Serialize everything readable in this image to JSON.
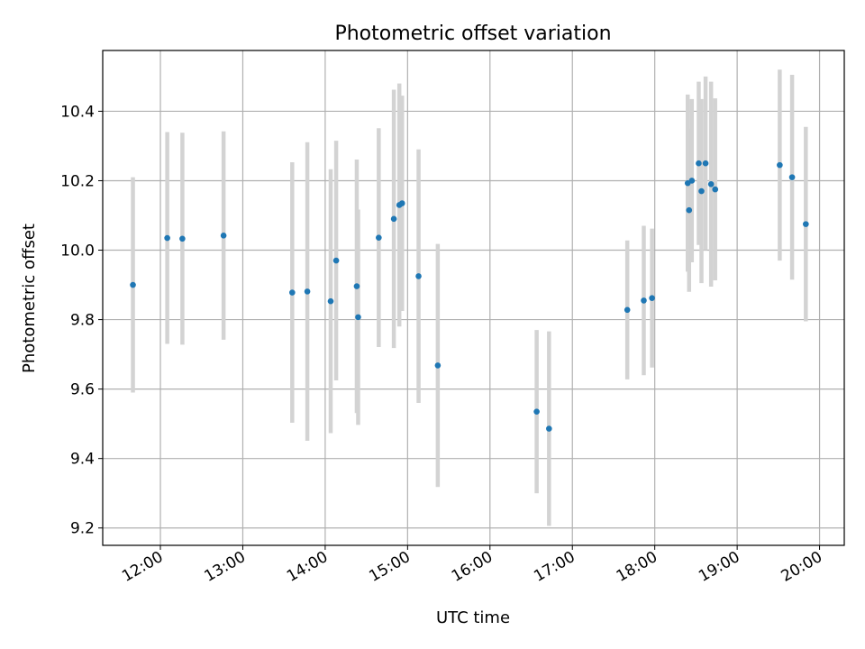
{
  "chart_data": {
    "type": "scatter",
    "title": "Photometric offset variation",
    "xlabel": "UTC time",
    "ylabel": "Photometric offset",
    "x_ticks": [
      "12:00",
      "13:00",
      "14:00",
      "15:00",
      "16:00",
      "17:00",
      "18:00",
      "19:00",
      "20:00"
    ],
    "y_ticks": [
      "9.2",
      "9.4",
      "9.6",
      "9.8",
      "10.0",
      "10.2",
      "10.4"
    ],
    "xlim": [
      "11:18",
      "20:18"
    ],
    "ylim": [
      9.15,
      10.575
    ],
    "grid": true,
    "colors": {
      "points": "#1f77b4",
      "errorbars": "#d3d3d3",
      "grid": "#b0b0b0"
    },
    "series": [
      {
        "points": [
          {
            "x": "11:40",
            "y": 9.9,
            "err": 0.31
          },
          {
            "x": "12:05",
            "y": 10.035,
            "err": 0.305
          },
          {
            "x": "12:16",
            "y": 10.033,
            "err": 0.305
          },
          {
            "x": "12:46",
            "y": 10.042,
            "err": 0.3
          },
          {
            "x": "13:36",
            "y": 9.878,
            "err": 0.375
          },
          {
            "x": "13:47",
            "y": 9.881,
            "err": 0.43
          },
          {
            "x": "14:04",
            "y": 9.853,
            "err": 0.38
          },
          {
            "x": "14:08",
            "y": 9.97,
            "err": 0.345
          },
          {
            "x": "14:23",
            "y": 9.896,
            "err": 0.365
          },
          {
            "x": "14:24",
            "y": 9.807,
            "err": 0.31
          },
          {
            "x": "14:39",
            "y": 10.036,
            "err": 0.315
          },
          {
            "x": "14:50",
            "y": 10.09,
            "err": 0.372
          },
          {
            "x": "14:54",
            "y": 10.13,
            "err": 0.35
          },
          {
            "x": "14:56",
            "y": 10.135,
            "err": 0.31
          },
          {
            "x": "15:08",
            "y": 9.925,
            "err": 0.365
          },
          {
            "x": "15:22",
            "y": 9.668,
            "err": 0.35
          },
          {
            "x": "16:34",
            "y": 9.535,
            "err": 0.235
          },
          {
            "x": "16:43",
            "y": 9.486,
            "err": 0.28
          },
          {
            "x": "17:40",
            "y": 9.828,
            "err": 0.2
          },
          {
            "x": "17:52",
            "y": 9.855,
            "err": 0.215
          },
          {
            "x": "17:58",
            "y": 9.862,
            "err": 0.2
          },
          {
            "x": "18:24",
            "y": 10.193,
            "err": 0.255
          },
          {
            "x": "18:25",
            "y": 10.115,
            "err": 0.235
          },
          {
            "x": "18:27",
            "y": 10.2,
            "err": 0.235
          },
          {
            "x": "18:32",
            "y": 10.25,
            "err": 0.235
          },
          {
            "x": "18:34",
            "y": 10.17,
            "err": 0.265
          },
          {
            "x": "18:37",
            "y": 10.25,
            "err": 0.25
          },
          {
            "x": "18:41",
            "y": 10.19,
            "err": 0.295
          },
          {
            "x": "18:44",
            "y": 10.175,
            "err": 0.262
          },
          {
            "x": "19:31",
            "y": 10.245,
            "err": 0.275
          },
          {
            "x": "19:40",
            "y": 10.21,
            "err": 0.295
          },
          {
            "x": "19:50",
            "y": 10.075,
            "err": 0.28
          }
        ]
      }
    ]
  }
}
